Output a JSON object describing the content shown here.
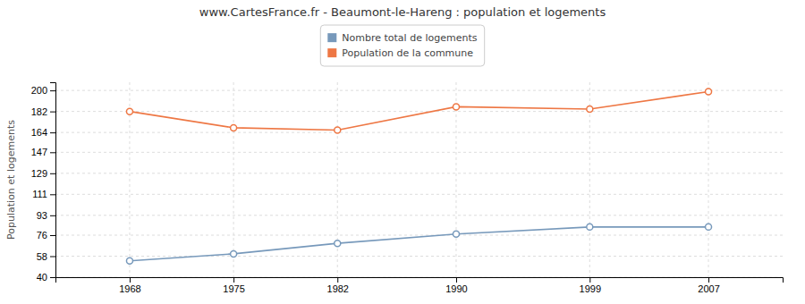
{
  "chart_data": {
    "type": "line",
    "title": "www.CartesFrance.fr - Beaumont-le-Hareng : population et logements",
    "ylabel": "Population et logements",
    "x": [
      1968,
      1975,
      1982,
      1990,
      1999,
      2007
    ],
    "series": [
      {
        "name": "Nombre total de logements",
        "color": "#7799bb",
        "marker": "circle",
        "line_style": "solid",
        "values": [
          54,
          60,
          69,
          77,
          83,
          83
        ]
      },
      {
        "name": "Population de la commune",
        "color": "#ee7744",
        "marker": "circle",
        "line_style": "solid",
        "values": [
          182,
          168,
          166,
          186,
          184,
          199
        ]
      }
    ],
    "xlim": [
      1963,
      2012
    ],
    "xticks": [
      1968,
      1975,
      1982,
      1990,
      1999,
      2007
    ],
    "ylim": [
      40,
      207
    ],
    "yticks": [
      40,
      58,
      76,
      93,
      111,
      129,
      147,
      164,
      182,
      200
    ],
    "grid": true,
    "legend": "top"
  }
}
